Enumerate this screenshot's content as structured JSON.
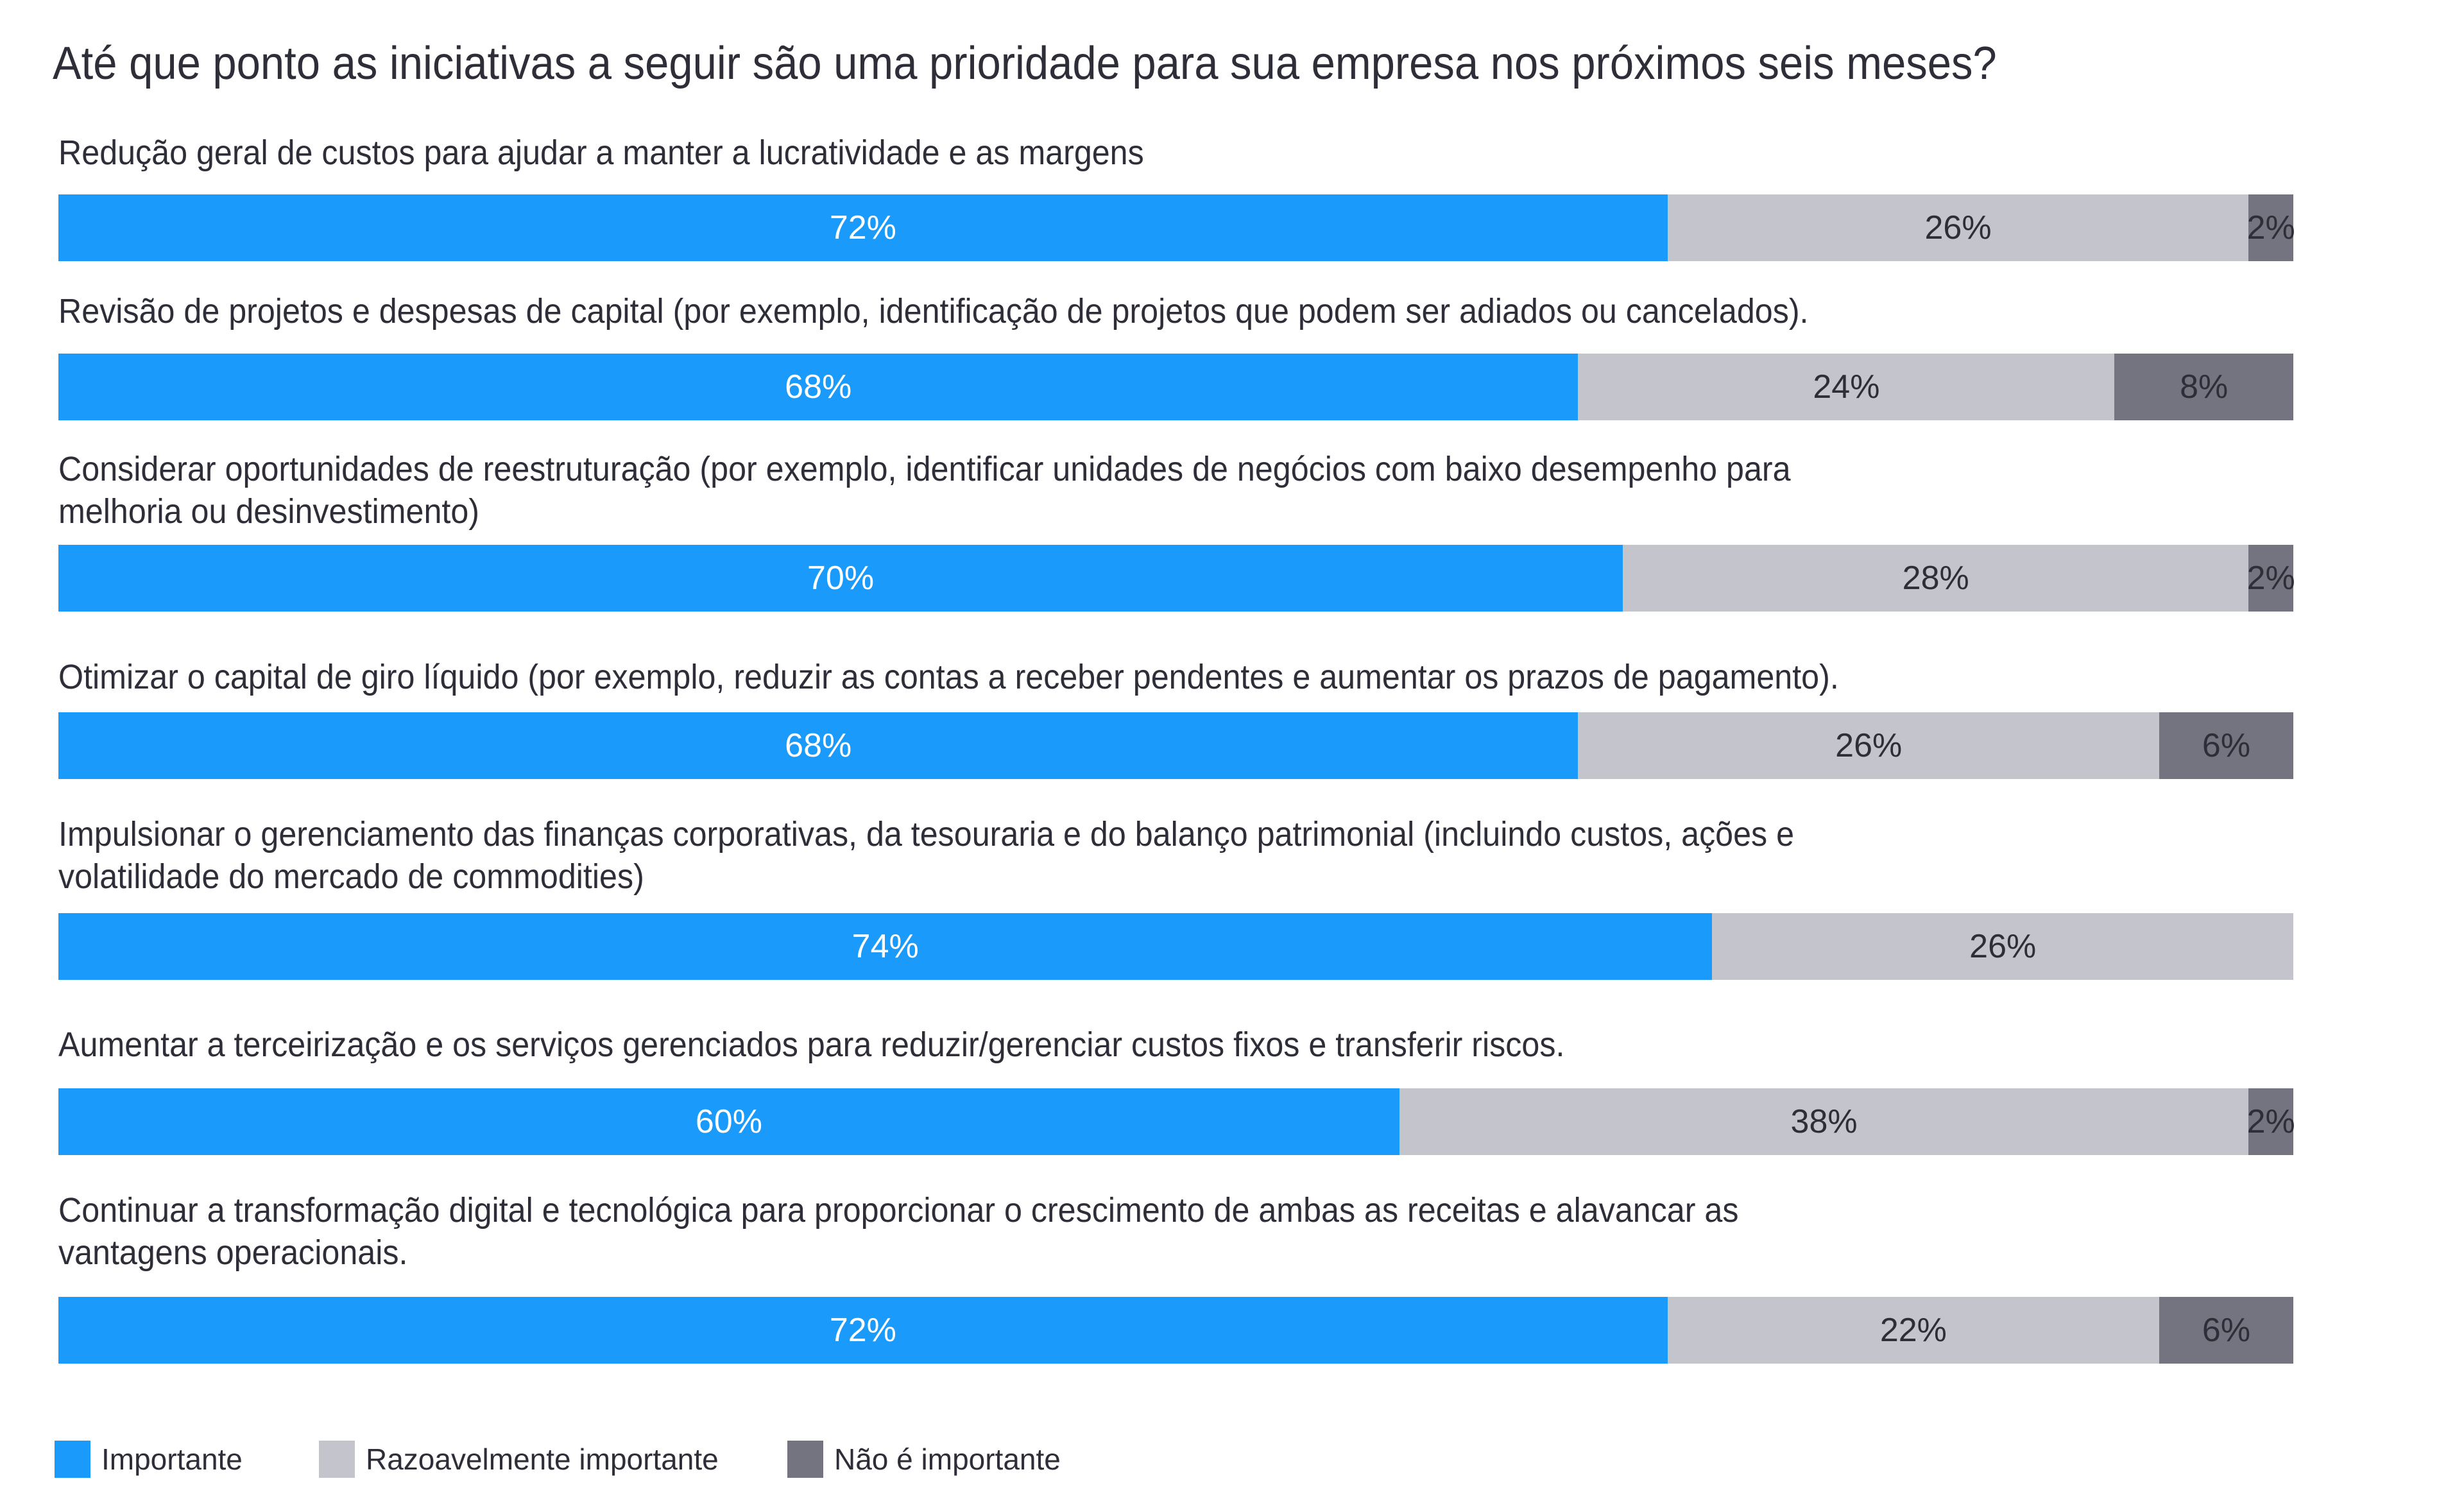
{
  "chart_data": {
    "type": "bar",
    "orientation": "horizontal",
    "stacked": true,
    "title": "Até que ponto as iniciativas a seguir são uma prioridade para sua empresa nos próximos seis meses?",
    "xlabel": "",
    "ylabel": "",
    "xlim": [
      0,
      100
    ],
    "grid": false,
    "legend_position": "bottom-left",
    "categories": [
      "Redução geral de custos para ajudar a manter a lucratividade e as margens",
      "Revisão de projetos e despesas de capital (por exemplo, identificação de projetos que podem ser adiados ou cancelados).",
      "Considerar oportunidades de reestruturação (por exemplo, identificar unidades de negócios com baixo desempenho para\nmelhoria ou desinvestimento)",
      "Otimizar o capital de giro líquido (por exemplo, reduzir as contas a receber pendentes e aumentar os prazos de pagamento).",
      "Impulsionar o gerenciamento das finanças corporativas, da tesouraria e do balanço patrimonial (incluindo custos, ações e\nvolatilidade do mercado de commodities)",
      "Aumentar a terceirização e os serviços gerenciados para reduzir/gerenciar custos fixos e transferir riscos.",
      "Continuar a transformação digital e tecnológica para proporcionar o crescimento de ambas as receitas e alavancar as\nvantagens operacionais."
    ],
    "series": [
      {
        "name": "Importante",
        "color": "#1a9afa",
        "label_color": "#ffffff",
        "values": [
          72,
          68,
          70,
          68,
          74,
          60,
          72
        ]
      },
      {
        "name": "Razoavelmente importante",
        "color": "#c4c4cd",
        "label_color": "#2e2e38",
        "values": [
          26,
          24,
          28,
          26,
          26,
          38,
          22
        ]
      },
      {
        "name": "Não é importante",
        "color": "#747480",
        "label_color": "#2e2e38",
        "values": [
          2,
          8,
          2,
          6,
          0,
          2,
          6
        ]
      }
    ],
    "value_suffix": "%"
  }
}
